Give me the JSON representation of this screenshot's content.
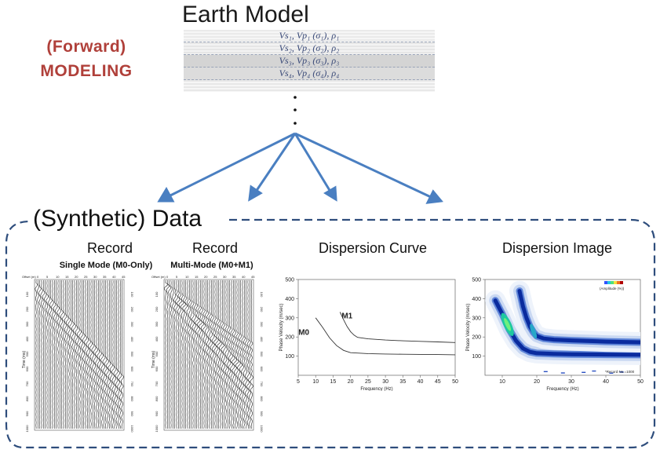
{
  "header": {
    "forward_line1": "(Forward)",
    "forward_line2": "MODELING",
    "earth_title": "Earth Model"
  },
  "earth_model": {
    "layers": [
      "Vs₁, Vp₁ (σ₁), ρ₁",
      "Vs₂, Vp₂ (σ₂), ρ₂",
      "Vs₃, Vp₃ (σ₃), ρ₃",
      "Vs₄, Vp₄ (σ₄), ρ₄"
    ],
    "continuation": ":"
  },
  "data_section": {
    "title": "(Synthetic) Data",
    "panels": [
      {
        "title": "Record",
        "subtitle": "Single Mode (M0-Only)"
      },
      {
        "title": "Record",
        "subtitle": "Multi-Mode (M0+M1)"
      },
      {
        "title": "Dispersion Curve"
      },
      {
        "title": "Dispersion Image"
      }
    ]
  },
  "record_axes": {
    "offset_label": "Offset (m)",
    "time_label": "Time (ms)",
    "offset_ticks": [
      "0",
      "5",
      "10",
      "15",
      "20",
      "25",
      "30",
      "35",
      "40",
      "45"
    ],
    "time_ticks": [
      "100",
      "200",
      "300",
      "400",
      "500",
      "600",
      "700",
      "800",
      "900",
      "1000"
    ]
  },
  "chart_data": [
    {
      "type": "line",
      "title": "Dispersion Curve",
      "xlabel": "Frequency (Hz)",
      "ylabel": "Phase Velocity (m/sec)",
      "xlim": [
        5,
        50
      ],
      "ylim": [
        0,
        500
      ],
      "x_ticks": [
        "5",
        "10",
        "15",
        "20",
        "25",
        "30",
        "35",
        "40",
        "45",
        "50"
      ],
      "y_ticks": [
        "100",
        "200",
        "300",
        "400",
        "500"
      ],
      "grid": false,
      "series": [
        {
          "name": "M0",
          "x": [
            10,
            12,
            14,
            16,
            18,
            20,
            25,
            30,
            35,
            40,
            45,
            50
          ],
          "y": [
            300,
            250,
            195,
            155,
            130,
            118,
            113,
            111,
            110,
            109,
            108,
            107
          ]
        },
        {
          "name": "M1",
          "x": [
            17,
            18,
            19,
            20,
            21,
            22,
            25,
            30,
            35,
            40,
            45,
            50
          ],
          "y": [
            330,
            290,
            255,
            228,
            210,
            198,
            190,
            184,
            180,
            177,
            174,
            171
          ]
        }
      ]
    },
    {
      "type": "heatmap",
      "title": "Dispersion Image",
      "xlabel": "Frequency (Hz)",
      "ylabel": "Phase Velocity (m/sec)",
      "xlim": [
        5,
        50
      ],
      "ylim": [
        0,
        500
      ],
      "x_ticks": [
        "10",
        "20",
        "30",
        "40",
        "50"
      ],
      "y_ticks": [
        "100",
        "200",
        "300",
        "400",
        "500"
      ],
      "colorbar_label": "(Amplitude (%))",
      "note": "*Record No.=1000",
      "ridges": [
        {
          "name": "M0",
          "x": [
            8,
            10,
            12,
            14,
            16,
            18,
            20,
            25,
            30,
            40,
            50
          ],
          "y": [
            390,
            320,
            240,
            180,
            140,
            122,
            115,
            112,
            110,
            108,
            107
          ]
        },
        {
          "name": "M1",
          "x": [
            15,
            16,
            17,
            18,
            19,
            20,
            22,
            25,
            30,
            40,
            50
          ],
          "y": [
            440,
            360,
            300,
            255,
            225,
            205,
            192,
            186,
            182,
            176,
            172
          ]
        }
      ]
    }
  ],
  "colors": {
    "accent_arrow": "#4a7fc1",
    "modeling_text": "#b0403a",
    "dashed_border": "#2e4d7c",
    "heat_core": "#0a2b9e",
    "heat_mid": "#1ec8a0"
  }
}
